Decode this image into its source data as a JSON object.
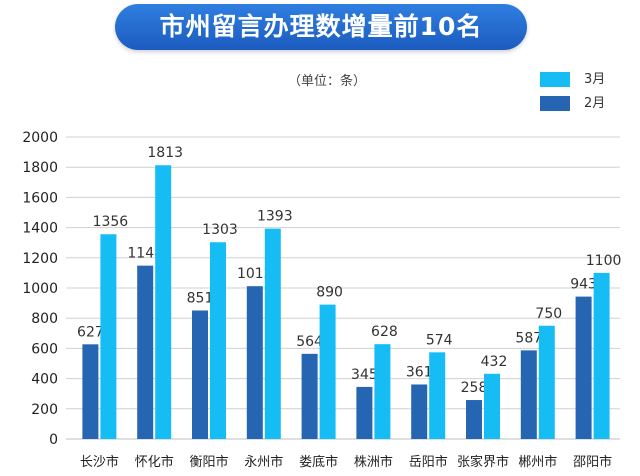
{
  "title": "市州留言办理数增量前10名",
  "unit_note": "（单位：条）",
  "colors": {
    "march": "#16bdf5",
    "february": "#2565b2",
    "title_bg": "#1f62c4",
    "grid": "#d0d0d0"
  },
  "chart_data": {
    "type": "bar",
    "title": "市州留言办理数增量前10名",
    "categories": [
      "长沙市",
      "怀化市",
      "衡阳市",
      "永州市",
      "娄底市",
      "株洲市",
      "岳阳市",
      "张家界市",
      "郴州市",
      "邵阳市"
    ],
    "series": [
      {
        "name": "2月",
        "values": [
          627,
          1148,
          851,
          1012,
          564,
          345,
          361,
          258,
          587,
          943
        ]
      },
      {
        "name": "3月",
        "values": [
          1356,
          1813,
          1303,
          1393,
          890,
          628,
          574,
          432,
          750,
          1100
        ]
      }
    ],
    "ylim": [
      0,
      2000
    ],
    "yticks": [
      0,
      200,
      400,
      600,
      800,
      1000,
      1200,
      1400,
      1600,
      1800,
      2000
    ],
    "grid": true,
    "legend_position": "top-right"
  }
}
